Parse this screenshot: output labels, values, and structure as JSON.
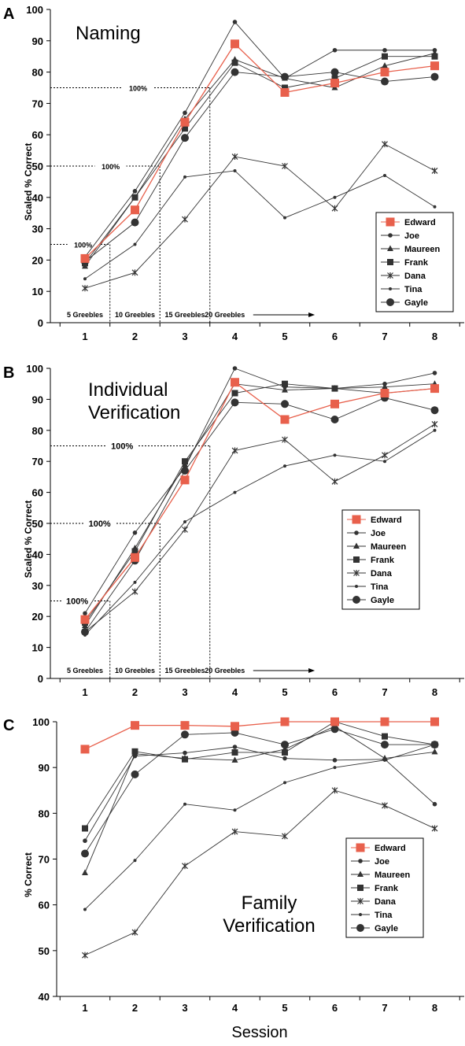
{
  "figure": {
    "x_title": "Session"
  },
  "chart_data": [
    {
      "type": "line",
      "panel_label": "A",
      "title": "Naming",
      "xlabel": "",
      "ylabel": "Scaled % Correct",
      "ylim": [
        0,
        100
      ],
      "yticks": [
        0,
        10,
        20,
        30,
        40,
        50,
        60,
        70,
        80,
        90,
        100
      ],
      "categories": [
        1,
        2,
        3,
        4,
        5,
        6,
        7,
        8
      ],
      "grid": false,
      "legend_position": "bottom-right",
      "reference_lines": [
        {
          "label": "100%",
          "y": 25,
          "x_end": 1.5
        },
        {
          "label": "100%",
          "y": 50,
          "x_end": 2.5
        },
        {
          "label": "100%",
          "y": 75,
          "x_end": 3.5
        }
      ],
      "phase_labels": [
        {
          "text": "5 Greebles",
          "x": 1.0
        },
        {
          "text": "10 Greebles",
          "x": 2.0
        },
        {
          "text": "15 Greebles",
          "x": 3.0
        },
        {
          "text": "20 Greebles",
          "x": 3.8,
          "arrow_to": 5.6
        }
      ],
      "series": [
        {
          "name": "Edward",
          "marker": "square",
          "color": "#e8604c",
          "values": [
            20.5,
            36,
            64,
            89,
            73.5,
            76.5,
            80,
            82
          ]
        },
        {
          "name": "Joe",
          "marker": "dot",
          "color": "#333333",
          "values": [
            21,
            42,
            67,
            96,
            78,
            87,
            87,
            87
          ]
        },
        {
          "name": "Maureen",
          "marker": "triangle",
          "color": "#333333",
          "values": [
            18,
            40,
            65,
            84,
            78,
            75,
            82,
            86
          ]
        },
        {
          "name": "Frank",
          "marker": "filled-square",
          "color": "#333333",
          "values": [
            19,
            40,
            62,
            83,
            75,
            78,
            85,
            85
          ]
        },
        {
          "name": "Dana",
          "marker": "star",
          "color": "#333333",
          "values": [
            11,
            16,
            33,
            53,
            50,
            36.5,
            57,
            48.5
          ]
        },
        {
          "name": "Tina",
          "marker": "small-dot",
          "color": "#333333",
          "values": [
            14,
            25,
            46.5,
            48.5,
            33.5,
            40,
            47,
            37
          ]
        },
        {
          "name": "Gayle",
          "marker": "circle",
          "color": "#333333",
          "values": [
            19.5,
            32,
            59,
            80,
            78.5,
            80,
            77,
            78.5
          ]
        }
      ]
    },
    {
      "type": "line",
      "panel_label": "B",
      "title": "Individual\nVerification",
      "xlabel": "",
      "ylabel": "Scaled % Correct",
      "ylim": [
        0,
        100
      ],
      "yticks": [
        0,
        10,
        20,
        30,
        40,
        50,
        60,
        70,
        80,
        90,
        100
      ],
      "categories": [
        1,
        2,
        3,
        4,
        5,
        6,
        7,
        8
      ],
      "grid": false,
      "legend_position": "center-right",
      "reference_lines": [
        {
          "label": "100%",
          "y": 25,
          "x_end": 1.5
        },
        {
          "label": "100%",
          "y": 50,
          "x_end": 2.5
        },
        {
          "label": "100%",
          "y": 75,
          "x_end": 3.5
        }
      ],
      "phase_labels": [
        {
          "text": "5 Greebles",
          "x": 1.0
        },
        {
          "text": "10 Greebles",
          "x": 2.0
        },
        {
          "text": "15 Greebles",
          "x": 3.0
        },
        {
          "text": "20 Greebles",
          "x": 3.8,
          "arrow_to": 5.6
        }
      ],
      "series": [
        {
          "name": "Edward",
          "marker": "square",
          "color": "#e8604c",
          "values": [
            19,
            39,
            64,
            95.5,
            83.5,
            88.5,
            92,
            93.5
          ]
        },
        {
          "name": "Joe",
          "marker": "dot",
          "color": "#333333",
          "values": [
            21,
            47,
            68,
            100,
            94,
            93.5,
            95,
            98.5
          ]
        },
        {
          "name": "Maureen",
          "marker": "triangle",
          "color": "#333333",
          "values": [
            17,
            42,
            69,
            95,
            93,
            93.5,
            94,
            95
          ]
        },
        {
          "name": "Frank",
          "marker": "filled-square",
          "color": "#333333",
          "values": [
            18,
            41,
            70,
            92,
            95,
            93.5,
            92,
            93.5
          ]
        },
        {
          "name": "Dana",
          "marker": "star",
          "color": "#333333",
          "values": [
            15,
            28,
            48,
            73.5,
            77,
            63.5,
            72,
            82
          ]
        },
        {
          "name": "Tina",
          "marker": "small-dot",
          "color": "#333333",
          "values": [
            14,
            31,
            50.5,
            60,
            68.5,
            72,
            70,
            80
          ]
        },
        {
          "name": "Gayle",
          "marker": "circle",
          "color": "#333333",
          "values": [
            15,
            38,
            67,
            89,
            88.5,
            83.5,
            90.5,
            86.5
          ]
        }
      ]
    },
    {
      "type": "line",
      "panel_label": "C",
      "title": "Family\nVerification",
      "xlabel": "",
      "ylabel": "% Correct",
      "ylim": [
        40,
        100
      ],
      "yticks": [
        40,
        50,
        60,
        70,
        80,
        90,
        100
      ],
      "categories": [
        1,
        2,
        3,
        4,
        5,
        6,
        7,
        8
      ],
      "grid": false,
      "legend_position": "center-right",
      "series": [
        {
          "name": "Edward",
          "marker": "square",
          "color": "#e8604c",
          "values": [
            94,
            99.2,
            99.2,
            99,
            100,
            100,
            100,
            100
          ]
        },
        {
          "name": "Joe",
          "marker": "dot",
          "color": "#333333",
          "values": [
            74,
            92.5,
            93.2,
            94.5,
            92,
            91.6,
            91.8,
            82
          ]
        },
        {
          "name": "Maureen",
          "marker": "triangle",
          "color": "#333333",
          "values": [
            67,
            93,
            92,
            91.6,
            94,
            99,
            92,
            93.4
          ]
        },
        {
          "name": "Frank",
          "marker": "filled-square",
          "color": "#333333",
          "values": [
            76.7,
            93.5,
            91.8,
            93.3,
            93.3,
            100,
            96.8,
            95
          ]
        },
        {
          "name": "Dana",
          "marker": "star",
          "color": "#333333",
          "values": [
            49,
            54,
            68.5,
            76,
            75,
            85,
            81.7,
            76.7
          ]
        },
        {
          "name": "Tina",
          "marker": "small-dot",
          "color": "#333333",
          "values": [
            59,
            69.7,
            82,
            80.7,
            86.7,
            90,
            91.6,
            95
          ]
        },
        {
          "name": "Gayle",
          "marker": "circle",
          "color": "#333333",
          "values": [
            71.2,
            88.5,
            97.2,
            97.6,
            95,
            98.4,
            95,
            95
          ]
        }
      ]
    }
  ]
}
